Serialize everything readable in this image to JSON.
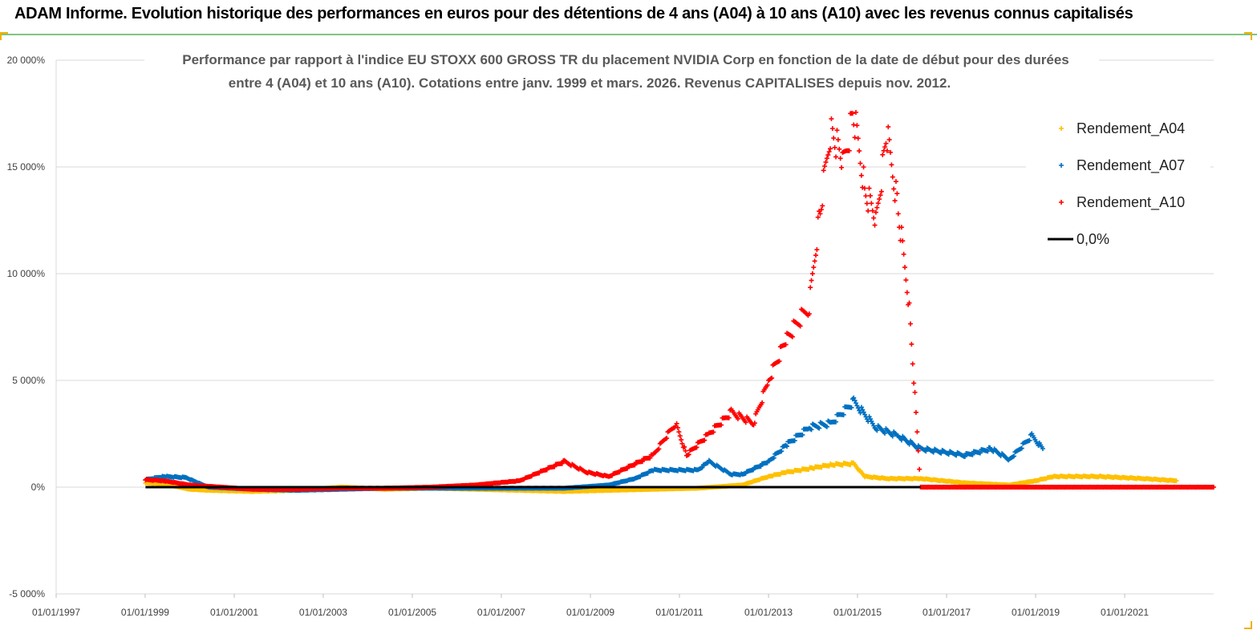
{
  "header": {
    "title": "ADAM Informe. Evolution historique des performances en euros pour des détentions de 4 ans (A04) à 10 ans (A10) avec les revenus connus capitalisés"
  },
  "chart_data": {
    "type": "scatter",
    "title_line1": "Performance par rapport à l'indice EU STOXX 600 GROSS TR  du placement NVIDIA Corp en fonction de la date de début pour des durées",
    "title_line2": "entre 4 (A04) et 10 ans (A10). Cotations entre janv. 1999 et mars. 2026. Revenus CAPITALISES depuis nov. 2012.",
    "x_type": "date",
    "xlim": [
      "1997-01-01",
      "2023-01-01"
    ],
    "ylim": [
      -5000,
      20000
    ],
    "y_unit": "%",
    "y_ticks": [
      "20 000%",
      "15 000%",
      "10 000%",
      "5 000%",
      "0%",
      "-5 000%"
    ],
    "x_ticks": [
      "01/01/1997",
      "01/01/1999",
      "01/01/2001",
      "01/01/2003",
      "01/01/2005",
      "01/01/2007",
      "01/01/2009",
      "01/01/2011",
      "01/01/2013",
      "01/01/2015",
      "01/01/2017",
      "01/01/2019",
      "01/01/2021"
    ],
    "grid": "horizontal",
    "legend_position": "top-right",
    "colors": {
      "A04": "#ffc000",
      "A07": "#0070c0",
      "A10": "#ff0000",
      "zero": "#000000"
    },
    "series": [
      {
        "name": "Rendement_A04",
        "points": [
          [
            "1999-01-04",
            200
          ],
          [
            "1999-06-01",
            150
          ],
          [
            "2000-01-01",
            -100
          ],
          [
            "2000-06-01",
            -150
          ],
          [
            "2001-06-01",
            -200
          ],
          [
            "2002-06-01",
            -150
          ],
          [
            "2003-06-01",
            0
          ],
          [
            "2004-06-01",
            -100
          ],
          [
            "2005-06-01",
            -50
          ],
          [
            "2006-06-01",
            -100
          ],
          [
            "2007-06-01",
            -150
          ],
          [
            "2008-06-01",
            -200
          ],
          [
            "2009-06-01",
            -150
          ],
          [
            "2010-06-01",
            -100
          ],
          [
            "2011-06-01",
            -50
          ],
          [
            "2012-06-01",
            100
          ],
          [
            "2013-01-01",
            500
          ],
          [
            "2013-06-01",
            700
          ],
          [
            "2014-01-01",
            900
          ],
          [
            "2014-06-01",
            1050
          ],
          [
            "2014-12-01",
            1100
          ],
          [
            "2015-03-01",
            500
          ],
          [
            "2015-09-01",
            400
          ],
          [
            "2016-06-01",
            400
          ],
          [
            "2017-06-01",
            200
          ],
          [
            "2018-06-01",
            100
          ],
          [
            "2019-01-01",
            300
          ],
          [
            "2019-06-01",
            500
          ],
          [
            "2020-06-01",
            500
          ],
          [
            "2021-06-01",
            400
          ],
          [
            "2022-03-01",
            300
          ]
        ]
      },
      {
        "name": "Rendement_A07",
        "points": [
          [
            "1999-01-04",
            350
          ],
          [
            "1999-06-01",
            500
          ],
          [
            "1999-12-01",
            450
          ],
          [
            "2000-06-01",
            0
          ],
          [
            "2001-06-01",
            -100
          ],
          [
            "2002-06-01",
            -150
          ],
          [
            "2003-06-01",
            -100
          ],
          [
            "2004-06-01",
            -50
          ],
          [
            "2005-06-01",
            -50
          ],
          [
            "2006-06-01",
            -50
          ],
          [
            "2007-06-01",
            -50
          ],
          [
            "2008-06-01",
            -50
          ],
          [
            "2009-06-01",
            100
          ],
          [
            "2010-01-01",
            400
          ],
          [
            "2010-06-01",
            800
          ],
          [
            "2010-12-01",
            800
          ],
          [
            "2011-06-01",
            800
          ],
          [
            "2011-09-01",
            1200
          ],
          [
            "2012-03-01",
            600
          ],
          [
            "2012-06-01",
            600
          ],
          [
            "2013-01-01",
            1200
          ],
          [
            "2013-06-01",
            2000
          ],
          [
            "2013-12-01",
            2800
          ],
          [
            "2014-06-01",
            3000
          ],
          [
            "2014-12-01",
            4000
          ],
          [
            "2015-06-01",
            2800
          ],
          [
            "2015-12-01",
            2400
          ],
          [
            "2016-06-01",
            1800
          ],
          [
            "2017-06-01",
            1500
          ],
          [
            "2018-01-01",
            1800
          ],
          [
            "2018-06-01",
            1300
          ],
          [
            "2018-12-01",
            2400
          ],
          [
            "2019-03-01",
            1800
          ]
        ]
      },
      {
        "name": "Rendement_A10",
        "points": [
          [
            "1999-01-04",
            350
          ],
          [
            "1999-06-01",
            300
          ],
          [
            "2000-01-01",
            100
          ],
          [
            "2001-06-01",
            -100
          ],
          [
            "2002-06-01",
            -100
          ],
          [
            "2003-06-01",
            -50
          ],
          [
            "2004-06-01",
            -50
          ],
          [
            "2005-06-01",
            0
          ],
          [
            "2006-06-01",
            100
          ],
          [
            "2007-06-01",
            300
          ],
          [
            "2008-06-01",
            1200
          ],
          [
            "2008-12-01",
            700
          ],
          [
            "2009-06-01",
            500
          ],
          [
            "2010-06-01",
            1500
          ],
          [
            "2010-12-01",
            3000
          ],
          [
            "2011-03-01",
            1500
          ],
          [
            "2011-09-01",
            2500
          ],
          [
            "2012-03-01",
            3500
          ],
          [
            "2012-09-01",
            3000
          ],
          [
            "2013-01-01",
            5000
          ],
          [
            "2013-06-01",
            7000
          ],
          [
            "2013-12-01",
            8500
          ],
          [
            "2014-03-01",
            13000
          ],
          [
            "2014-06-01",
            17000
          ],
          [
            "2014-09-01",
            15000
          ],
          [
            "2014-12-01",
            17500
          ],
          [
            "2015-03-01",
            14000
          ],
          [
            "2015-06-01",
            12500
          ],
          [
            "2015-09-01",
            16500
          ],
          [
            "2015-12-01",
            13000
          ],
          [
            "2016-03-01",
            8500
          ],
          [
            "2016-06-01",
            0
          ],
          [
            "2023-01-01",
            0
          ]
        ]
      },
      {
        "name": "0,0%",
        "points": [
          [
            "1999-01-04",
            0
          ],
          [
            "2016-06-01",
            0
          ]
        ]
      }
    ]
  }
}
